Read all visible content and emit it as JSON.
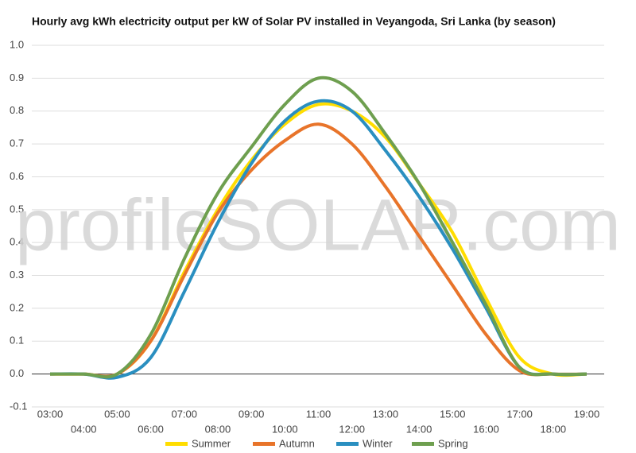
{
  "chart_data": {
    "type": "line",
    "title": "Hourly avg kWh electricity output per kW of Solar PV installed in Veyangoda, Sri Lanka (by season)",
    "watermark": "profileSOLAR.com",
    "categories": [
      "03:00",
      "04:00",
      "05:00",
      "06:00",
      "07:00",
      "08:00",
      "09:00",
      "10:00",
      "11:00",
      "12:00",
      "13:00",
      "14:00",
      "15:00",
      "16:00",
      "17:00",
      "18:00",
      "19:00"
    ],
    "series": [
      {
        "name": "Summer",
        "color": "#ffdd00",
        "values": [
          0,
          0,
          0,
          0.1,
          0.31,
          0.5,
          0.65,
          0.76,
          0.82,
          0.8,
          0.72,
          0.58,
          0.43,
          0.23,
          0.05,
          0,
          0
        ]
      },
      {
        "name": "Autumn",
        "color": "#e8742a",
        "values": [
          0,
          0,
          0,
          0.1,
          0.3,
          0.49,
          0.62,
          0.71,
          0.76,
          0.7,
          0.57,
          0.42,
          0.27,
          0.12,
          0.01,
          0,
          0
        ]
      },
      {
        "name": "Winter",
        "color": "#2a8fc0",
        "values": [
          0,
          0,
          -0.01,
          0.05,
          0.25,
          0.46,
          0.64,
          0.77,
          0.83,
          0.8,
          0.68,
          0.54,
          0.38,
          0.2,
          0.02,
          0,
          0
        ]
      },
      {
        "name": "Spring",
        "color": "#6e9f4f",
        "values": [
          0,
          0,
          0,
          0.12,
          0.35,
          0.55,
          0.69,
          0.82,
          0.9,
          0.86,
          0.73,
          0.58,
          0.4,
          0.21,
          0.02,
          0,
          0
        ]
      }
    ],
    "ylim": [
      -0.1,
      1
    ],
    "yticks": [
      -0.1,
      {
        "value": 0,
        "label": "0.0"
      },
      0.1,
      0.2,
      0.3,
      0.4,
      0.5,
      0.6,
      0.7,
      0.8,
      0.9,
      {
        "value": 1,
        "label": "1.0"
      }
    ],
    "grid": true
  }
}
